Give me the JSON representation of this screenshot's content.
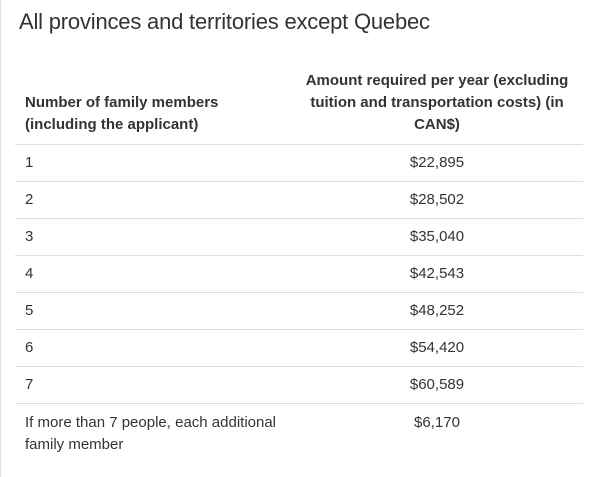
{
  "title": "All provinces and territories except Quebec",
  "table": {
    "headers": {
      "members": "Number of family members (including the applicant)",
      "amount": "Amount required per year (excluding tuition and transportation costs) (in CAN$)"
    },
    "rows": [
      {
        "members": "1",
        "amount": "$22,895"
      },
      {
        "members": "2",
        "amount": "$28,502"
      },
      {
        "members": "3",
        "amount": "$35,040"
      },
      {
        "members": "4",
        "amount": "$42,543"
      },
      {
        "members": "5",
        "amount": "$48,252"
      },
      {
        "members": "6",
        "amount": "$54,420"
      },
      {
        "members": "7",
        "amount": "$60,589"
      },
      {
        "members": "If more than 7 people, each additional family member",
        "amount": "$6,170"
      }
    ]
  }
}
